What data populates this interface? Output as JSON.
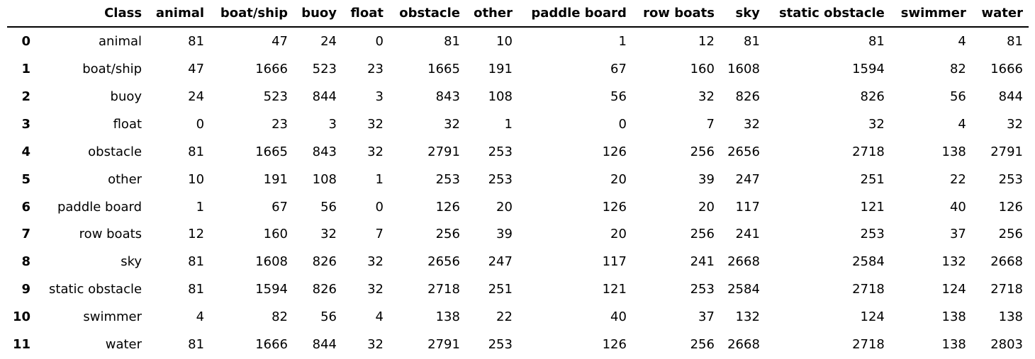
{
  "chart_data": {
    "type": "table",
    "columns": [
      "",
      "Class",
      "animal",
      "boat/ship",
      "buoy",
      "float",
      "obstacle",
      "other",
      "paddle board",
      "row boats",
      "sky",
      "static obstacle",
      "swimmer",
      "water"
    ],
    "rows": [
      [
        "0",
        "animal",
        81,
        47,
        24,
        0,
        81,
        10,
        1,
        12,
        81,
        81,
        4,
        81
      ],
      [
        "1",
        "boat/ship",
        47,
        1666,
        523,
        23,
        1665,
        191,
        67,
        160,
        1608,
        1594,
        82,
        1666
      ],
      [
        "2",
        "buoy",
        24,
        523,
        844,
        3,
        843,
        108,
        56,
        32,
        826,
        826,
        56,
        844
      ],
      [
        "3",
        "float",
        0,
        23,
        3,
        32,
        32,
        1,
        0,
        7,
        32,
        32,
        4,
        32
      ],
      [
        "4",
        "obstacle",
        81,
        1665,
        843,
        32,
        2791,
        253,
        126,
        256,
        2656,
        2718,
        138,
        2791
      ],
      [
        "5",
        "other",
        10,
        191,
        108,
        1,
        253,
        253,
        20,
        39,
        247,
        251,
        22,
        253
      ],
      [
        "6",
        "paddle board",
        1,
        67,
        56,
        0,
        126,
        20,
        126,
        20,
        117,
        121,
        40,
        126
      ],
      [
        "7",
        "row boats",
        12,
        160,
        32,
        7,
        256,
        39,
        20,
        256,
        241,
        253,
        37,
        256
      ],
      [
        "8",
        "sky",
        81,
        1608,
        826,
        32,
        2656,
        247,
        117,
        241,
        2668,
        2584,
        132,
        2668
      ],
      [
        "9",
        "static obstacle",
        81,
        1594,
        826,
        32,
        2718,
        251,
        121,
        253,
        2584,
        2718,
        124,
        2718
      ],
      [
        "10",
        "swimmer",
        4,
        82,
        56,
        4,
        138,
        22,
        40,
        37,
        132,
        124,
        138,
        138
      ],
      [
        "11",
        "water",
        81,
        1666,
        844,
        32,
        2791,
        253,
        126,
        256,
        2668,
        2718,
        138,
        2803
      ]
    ]
  }
}
